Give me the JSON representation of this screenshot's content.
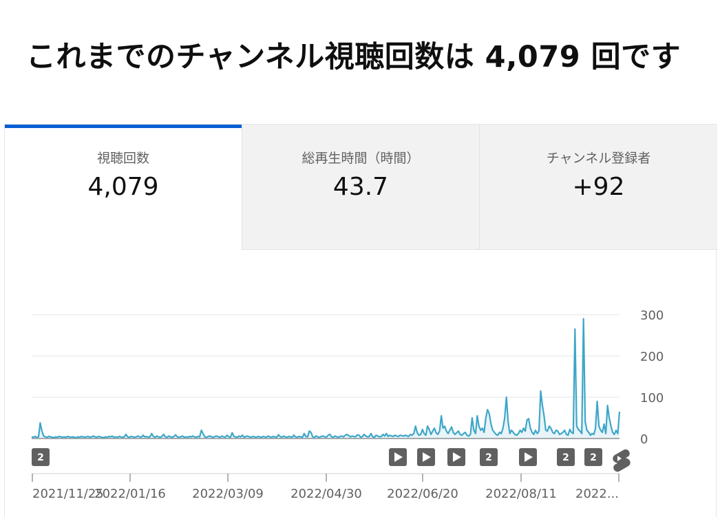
{
  "headline": "これまでのチャンネル視聴回数は 4,079 回です",
  "tabs": [
    {
      "label": "視聴回数",
      "value": "4,079"
    },
    {
      "label": "総再生時間（時間）",
      "value": "43.7"
    },
    {
      "label": "チャンネル登録者",
      "value": "+92"
    }
  ],
  "colors": {
    "line": "#3ea6c8",
    "accent": "#065fd4",
    "marker": "#606060"
  },
  "chart_data": {
    "type": "line",
    "title": "",
    "xlabel": "",
    "ylabel": "",
    "ylim": [
      0,
      300
    ],
    "yticks": [
      "300",
      "200",
      "100",
      "0"
    ],
    "xticks": [
      "2021/11/25",
      "2022/01/16",
      "2022/03/09",
      "2022/04/30",
      "2022/06/20",
      "2022/08/11",
      "2022..."
    ],
    "x_start": "2021/11/25",
    "x_end": "2022/10/02",
    "grid": true,
    "series": [
      {
        "values": [
          4,
          3,
          5,
          3,
          4,
          38,
          18,
          6,
          4,
          3,
          5,
          4,
          3,
          2,
          4,
          3,
          5,
          4,
          3,
          4,
          3,
          5,
          4,
          3,
          4,
          3,
          2,
          4,
          3,
          5,
          4,
          3,
          4,
          5,
          3,
          4,
          6,
          4,
          3,
          5,
          4,
          3,
          2,
          4,
          3,
          5,
          4,
          6,
          3,
          4,
          3,
          5,
          4,
          3,
          4,
          10,
          4,
          3,
          5,
          4,
          3,
          4,
          6,
          4,
          3,
          8,
          4,
          5,
          3,
          4,
          12,
          5,
          3,
          6,
          4,
          3,
          5,
          10,
          4,
          3,
          6,
          4,
          3,
          5,
          9,
          4,
          3,
          4,
          6,
          3,
          4,
          3,
          5,
          4,
          6,
          4,
          3,
          5,
          4,
          20,
          12,
          4,
          3,
          5,
          6,
          4,
          3,
          5,
          6,
          4,
          3,
          6,
          4,
          3,
          8,
          4,
          3,
          14,
          5,
          4,
          3,
          6,
          4,
          8,
          3,
          5,
          6,
          4,
          3,
          5,
          4,
          3,
          5,
          4,
          3,
          5,
          4,
          3,
          6,
          4,
          3,
          5,
          4,
          3,
          9,
          5,
          3,
          6,
          4,
          3,
          5,
          4,
          3,
          8,
          4,
          3,
          5,
          4,
          3,
          12,
          5,
          4,
          18,
          15,
          4,
          3,
          6,
          4,
          3,
          5,
          6,
          4,
          3,
          8,
          10,
          4,
          3,
          6,
          4,
          3,
          5,
          6,
          4,
          8,
          10,
          7,
          4,
          6,
          5,
          4,
          9,
          8,
          3,
          5,
          10,
          6,
          4,
          5,
          12,
          4,
          3,
          8,
          6,
          4,
          5,
          10,
          6,
          12,
          5,
          8,
          6,
          5,
          8,
          6,
          5,
          8,
          7,
          6,
          8,
          6,
          5,
          10,
          8,
          12,
          30,
          14,
          8,
          10,
          22,
          12,
          8,
          30,
          22,
          10,
          18,
          25,
          14,
          10,
          18,
          55,
          25,
          30,
          18,
          12,
          20,
          28,
          15,
          10,
          14,
          18,
          10,
          8,
          12,
          15,
          8,
          6,
          10,
          50,
          20,
          12,
          55,
          30,
          20,
          25,
          15,
          50,
          70,
          60,
          35,
          20,
          15,
          10,
          8,
          15,
          12,
          25,
          50,
          100,
          40,
          12,
          20,
          15,
          10,
          8,
          12,
          20,
          15,
          25,
          18,
          45,
          48,
          25,
          15,
          10,
          20,
          12,
          18,
          115,
          80,
          55,
          20,
          18,
          30,
          25,
          15,
          12,
          20,
          18,
          10,
          12,
          15,
          20,
          10,
          8,
          22,
          15,
          12,
          265,
          30,
          22,
          18,
          12,
          290,
          40,
          20,
          15,
          8,
          12,
          10,
          25,
          90,
          30,
          20,
          15,
          35,
          12,
          80,
          50,
          30,
          15,
          10,
          20,
          12,
          65
        ]
      }
    ],
    "markers": [
      {
        "label": "2",
        "icon": ""
      },
      {
        "label": "",
        "icon": "play-icon"
      },
      {
        "label": "",
        "icon": "play-icon"
      },
      {
        "label": "",
        "icon": "play-icon"
      },
      {
        "label": "2",
        "icon": ""
      },
      {
        "label": "",
        "icon": "play-icon"
      },
      {
        "label": "2",
        "icon": ""
      },
      {
        "label": "2",
        "icon": ""
      },
      {
        "label": "",
        "icon": "shorts-icon"
      }
    ]
  }
}
